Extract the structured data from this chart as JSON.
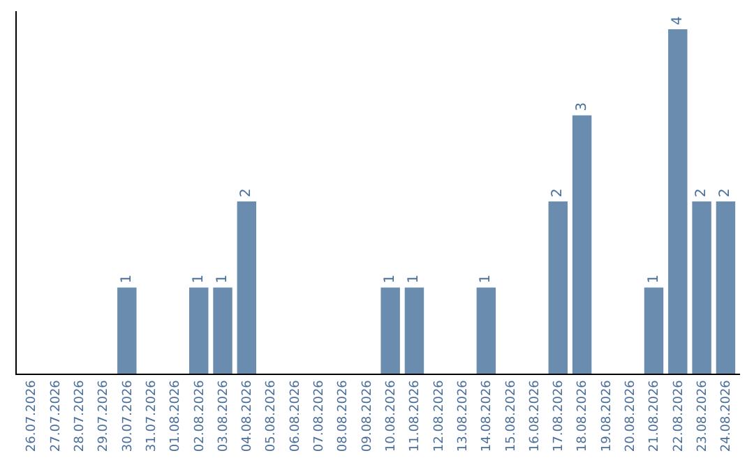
{
  "chart_data": {
    "type": "bar",
    "categories": [
      "26.07.2026",
      "27.07.2026",
      "28.07.2026",
      "29.07.2026",
      "30.07.2026",
      "31.07.2026",
      "01.08.2026",
      "02.08.2026",
      "03.08.2026",
      "04.08.2026",
      "05.08.2026",
      "06.08.2026",
      "07.08.2026",
      "08.08.2026",
      "09.08.2026",
      "10.08.2026",
      "11.08.2026",
      "12.08.2026",
      "13.08.2026",
      "14.08.2026",
      "15.08.2026",
      "16.08.2026",
      "17.08.2026",
      "18.08.2026",
      "19.08.2026",
      "20.08.2026",
      "21.08.2026",
      "22.08.2026",
      "23.08.2026",
      "24.08.2026"
    ],
    "values": [
      0,
      0,
      0,
      0,
      1,
      0,
      0,
      1,
      1,
      2,
      0,
      0,
      0,
      0,
      0,
      1,
      1,
      0,
      0,
      1,
      0,
      0,
      2,
      3,
      0,
      0,
      1,
      4,
      2,
      2
    ],
    "value_labels": [
      null,
      null,
      null,
      null,
      "1",
      null,
      null,
      "1",
      "1",
      "2",
      null,
      null,
      null,
      null,
      null,
      "1",
      "1",
      null,
      null,
      "1",
      null,
      null,
      "2",
      "3",
      null,
      null,
      "1",
      "4",
      "2",
      "2"
    ],
    "color": "#6a8caf",
    "tick_labels": "x",
    "legend": false
  }
}
